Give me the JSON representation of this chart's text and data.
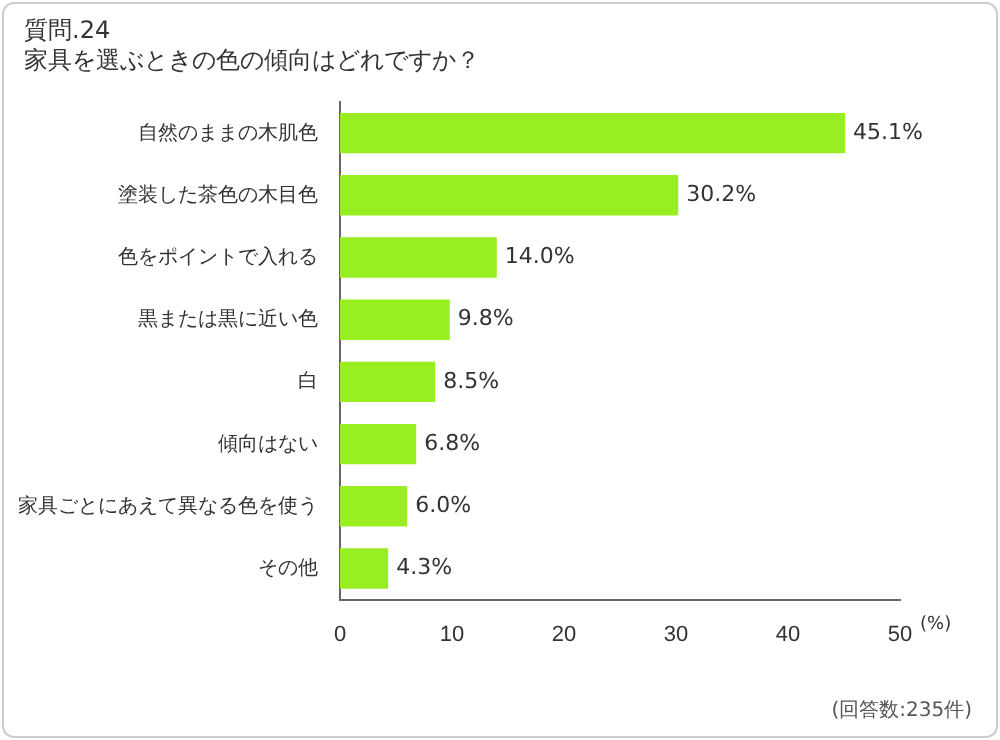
{
  "chart_data": {
    "type": "bar",
    "orientation": "horizontal",
    "title": "質問.24",
    "subtitle": "家具を選ぶときの色の傾向はどれですか？",
    "xlabel": "(%)",
    "categories": [
      "自然のままの木肌色",
      "塗装した茶色の木目色",
      "色をポイントで入れる",
      "黒または黒に近い色",
      "白",
      "傾向はない",
      "家具ごとにあえて異なる色を使う",
      "その他"
    ],
    "values": [
      45.1,
      30.2,
      14.0,
      9.8,
      8.5,
      6.8,
      6.0,
      4.3
    ],
    "value_labels": [
      "45.1%",
      "30.2%",
      "14.0%",
      "9.8%",
      "8.5%",
      "6.8%",
      "6.0%",
      "4.3%"
    ],
    "color": "#99ee22",
    "xlim": [
      0,
      50
    ],
    "xticks": [
      0,
      10,
      20,
      30,
      40,
      50
    ],
    "grid": false,
    "legend": false,
    "annotations": [
      "(回答数:235件)"
    ]
  }
}
